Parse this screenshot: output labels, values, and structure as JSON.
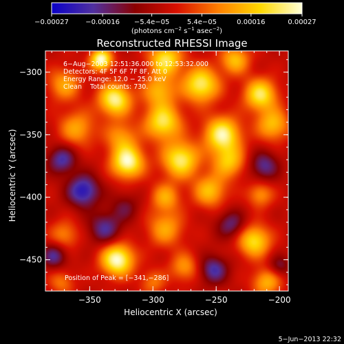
{
  "chart_data": {
    "type": "heatmap",
    "title": "Reconstructed RHESSI Image",
    "xlabel": "Heliocentric X (arcsec)",
    "ylabel": "Heliocentric Y (arcsec)",
    "xlim": [
      -385,
      -193
    ],
    "ylim": [
      -475,
      -283
    ],
    "x_ticks": [
      -350,
      -300,
      -250,
      -200
    ],
    "y_ticks": [
      -300,
      -350,
      -400,
      -450
    ],
    "x_tick_labels": [
      "−350",
      "−300",
      "−250",
      "−200"
    ],
    "y_tick_labels": [
      "−300",
      "−350",
      "−400",
      "−450"
    ],
    "colorbar": {
      "min": -0.00027,
      "max": 0.00027,
      "tick_values": [
        -0.00027,
        -0.00016,
        -5.4e-05,
        5.4e-05,
        0.00016,
        0.00027
      ],
      "tick_labels": [
        "−0.00027",
        "−0.00016",
        "−5.4e−05",
        "5.4e−05",
        "0.00016",
        "0.00027"
      ],
      "unit_parts": [
        "(photons cm",
        "−2",
        " s",
        "−1",
        " asec",
        "−2",
        ")"
      ],
      "colors": [
        "#0a00c8",
        "#5030a0",
        "#8a0000",
        "#d81000",
        "#ff8000",
        "#ffd800",
        "#ffffd8"
      ]
    },
    "info_lines": [
      "6−Aug−2003 12:51:36.000 to 12:53:32.000",
      "Detectors: 4F 5F 6F 7F 8F, Att 0",
      "Energy Range: 12.0 − 25.0 keV",
      "Clean    Total counts: 730."
    ],
    "peak_label": "Position of Peak = [−341,−286]",
    "peak_position": [
      -341,
      -286
    ],
    "blobs": [
      {
        "x": -341,
        "y": -290,
        "v": 1.0,
        "s": 6
      },
      {
        "x": -290,
        "y": -290,
        "v": 0.8,
        "s": 9
      },
      {
        "x": -235,
        "y": -290,
        "v": 0.6,
        "s": 8
      },
      {
        "x": -370,
        "y": -310,
        "v": 0.5,
        "s": 9
      },
      {
        "x": -330,
        "y": -322,
        "v": 0.9,
        "s": 9
      },
      {
        "x": -295,
        "y": -315,
        "v": 0.55,
        "s": 9
      },
      {
        "x": -262,
        "y": -310,
        "v": 0.85,
        "s": 10
      },
      {
        "x": -215,
        "y": -318,
        "v": 0.8,
        "s": 9
      },
      {
        "x": -360,
        "y": -345,
        "v": 0.5,
        "s": 10
      },
      {
        "x": -325,
        "y": -352,
        "v": 0.45,
        "s": 9
      },
      {
        "x": -292,
        "y": -340,
        "v": 0.8,
        "s": 10
      },
      {
        "x": -245,
        "y": -350,
        "v": 0.9,
        "s": 10
      },
      {
        "x": -205,
        "y": -342,
        "v": 0.6,
        "s": 9
      },
      {
        "x": -320,
        "y": -372,
        "v": 0.95,
        "s": 9
      },
      {
        "x": -278,
        "y": -370,
        "v": 0.85,
        "s": 10
      },
      {
        "x": -240,
        "y": -372,
        "v": 0.6,
        "s": 9
      },
      {
        "x": -255,
        "y": -395,
        "v": 0.6,
        "s": 9
      },
      {
        "x": -290,
        "y": -400,
        "v": 0.5,
        "s": 8
      },
      {
        "x": -215,
        "y": -398,
        "v": 0.45,
        "s": 7
      },
      {
        "x": -290,
        "y": -425,
        "v": 0.5,
        "s": 10
      },
      {
        "x": -220,
        "y": -435,
        "v": 0.75,
        "s": 9
      },
      {
        "x": -370,
        "y": -430,
        "v": 0.4,
        "s": 8
      },
      {
        "x": -328,
        "y": -450,
        "v": 1.0,
        "s": 9
      },
      {
        "x": -275,
        "y": -456,
        "v": 0.45,
        "s": 8
      },
      {
        "x": -210,
        "y": -468,
        "v": 0.55,
        "s": 8
      },
      {
        "x": -372,
        "y": -468,
        "v": 0.35,
        "s": 7
      },
      {
        "x": -300,
        "y": -468,
        "v": 0.35,
        "s": 7
      },
      {
        "x": -355,
        "y": -395,
        "v": -0.7,
        "s": 9
      },
      {
        "x": -372,
        "y": -370,
        "v": -0.55,
        "s": 8
      },
      {
        "x": -338,
        "y": -425,
        "v": -0.5,
        "s": 9
      },
      {
        "x": -212,
        "y": -375,
        "v": -0.5,
        "s": 8
      },
      {
        "x": -238,
        "y": -422,
        "v": -0.45,
        "s": 8
      },
      {
        "x": -252,
        "y": -458,
        "v": -0.55,
        "s": 8
      },
      {
        "x": -378,
        "y": -447,
        "v": -0.5,
        "s": 7
      },
      {
        "x": -322,
        "y": -408,
        "v": -0.3,
        "s": 8
      },
      {
        "x": -200,
        "y": -455,
        "v": -0.35,
        "s": 6
      }
    ]
  },
  "footer": {
    "date_stamp": "5−Jun−2013 22:32"
  }
}
